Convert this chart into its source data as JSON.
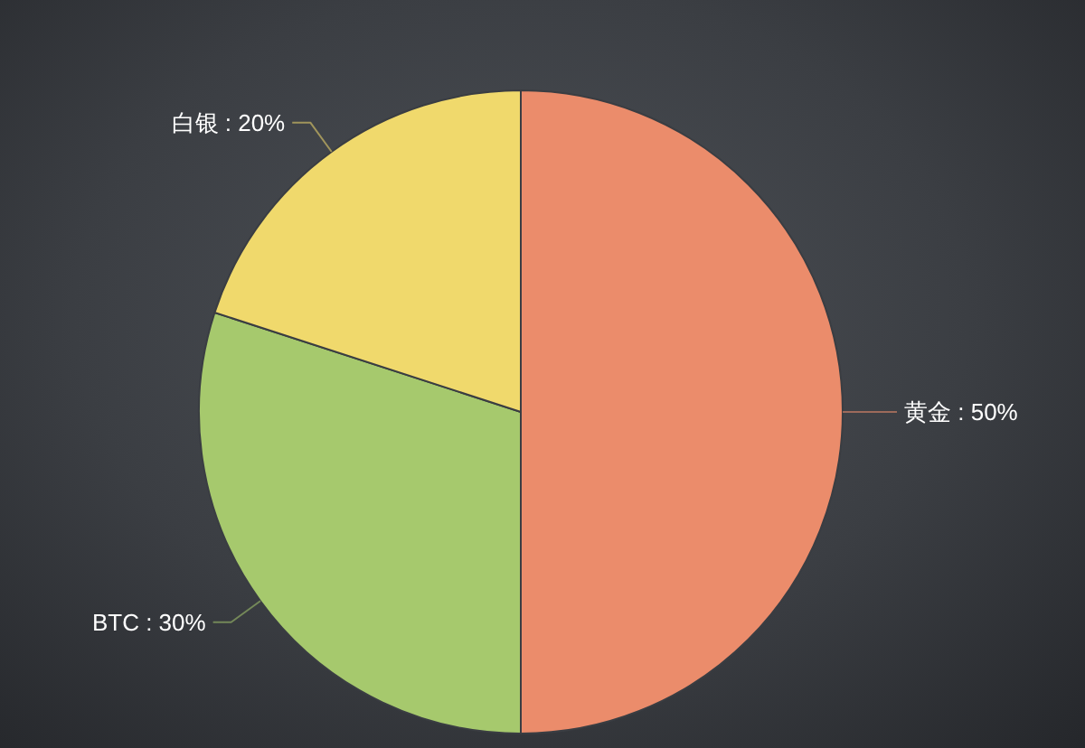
{
  "chart_data": {
    "type": "pie",
    "categories": [
      "黄金",
      "BTC",
      "白银"
    ],
    "values": [
      50,
      30,
      20
    ],
    "colors": [
      "#eb8c6b",
      "#a6c96d",
      "#f0d96c"
    ],
    "value_labels": [
      ": 50%",
      ": 30%",
      ": 20%"
    ]
  }
}
